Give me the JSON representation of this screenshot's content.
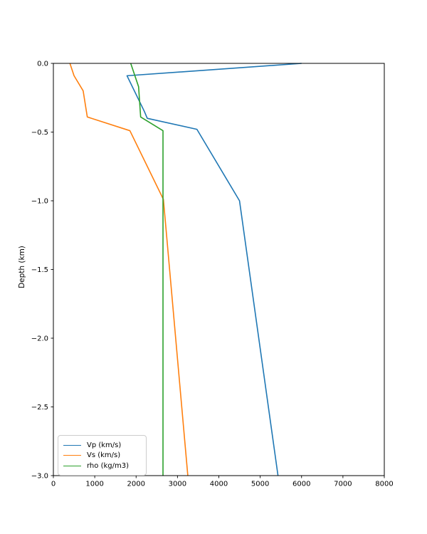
{
  "figure": {
    "background": "#ffffff"
  },
  "chart_data": {
    "type": "line",
    "title": "",
    "xlabel": "",
    "ylabel": "Depth (km)",
    "xlim": [
      0,
      8000
    ],
    "ylim": [
      -3.0,
      0.0
    ],
    "x_ticks": [
      0,
      1000,
      2000,
      3000,
      4000,
      5000,
      6000,
      7000,
      8000
    ],
    "y_ticks": [
      0.0,
      -0.5,
      -1.0,
      -1.5,
      -2.0,
      -2.5,
      -3.0
    ],
    "grid": false,
    "legend_position": "lower left",
    "axis_color": "#000000",
    "text_color": "#000000",
    "series": [
      {
        "key": "vp",
        "name": "Vp (km/s)",
        "color": "#1f77b4",
        "points": [
          [
            6000,
            0.0
          ],
          [
            1780,
            -0.09
          ],
          [
            2200,
            -0.35
          ],
          [
            2270,
            -0.4
          ],
          [
            3470,
            -0.48
          ],
          [
            4500,
            -1.0
          ],
          [
            5430,
            -3.0
          ]
        ]
      },
      {
        "key": "vs",
        "name": "Vs (km/s)",
        "color": "#ff7f0e",
        "points": [
          [
            400,
            0.0
          ],
          [
            500,
            -0.09
          ],
          [
            720,
            -0.2
          ],
          [
            820,
            -0.39
          ],
          [
            1850,
            -0.49
          ],
          [
            2660,
            -0.99
          ],
          [
            3250,
            -3.0
          ]
        ]
      },
      {
        "key": "rho",
        "name": "rho (kg/m3)",
        "color": "#2ca02c",
        "points": [
          [
            1870,
            0.0
          ],
          [
            2060,
            -0.17
          ],
          [
            2110,
            -0.39
          ],
          [
            2650,
            -0.49
          ],
          [
            2650,
            -3.0
          ]
        ]
      }
    ]
  }
}
